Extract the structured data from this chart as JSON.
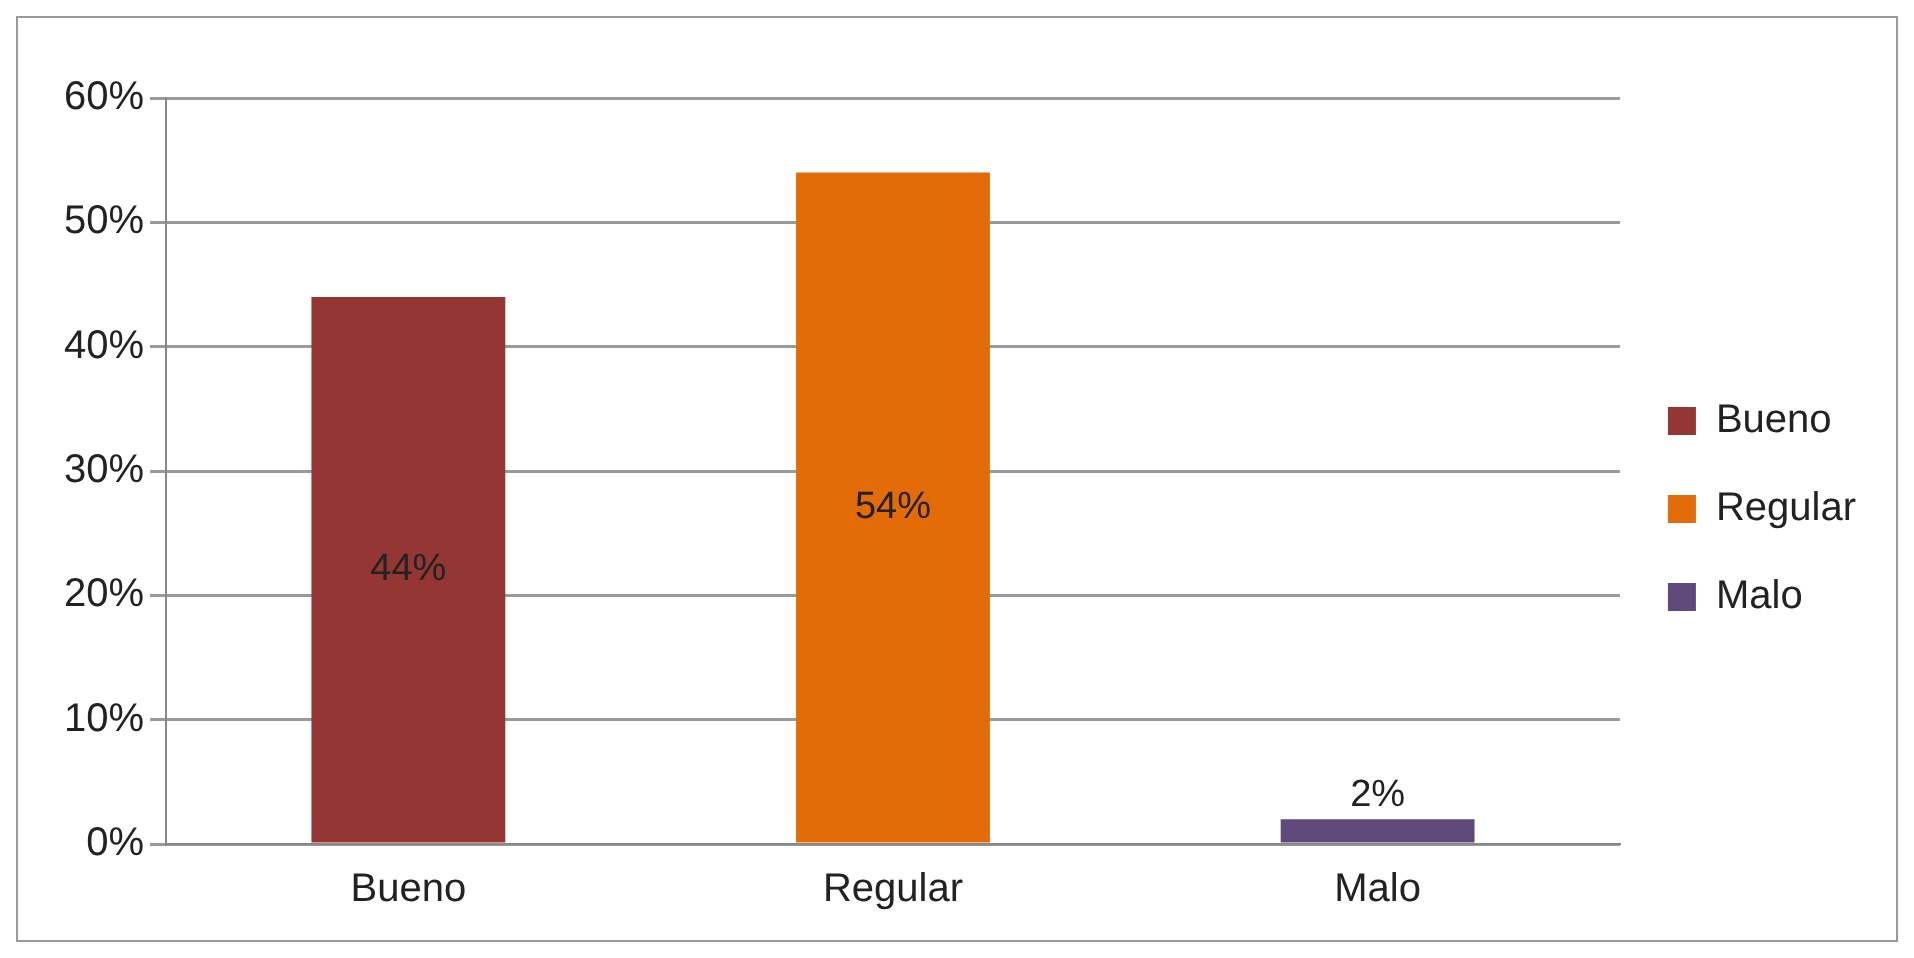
{
  "chart_data": {
    "type": "bar",
    "categories": [
      "Bueno",
      "Regular",
      "Malo"
    ],
    "series": [
      {
        "name": "Bueno",
        "color": "#943634",
        "values": [
          44,
          null,
          null
        ],
        "value_labels": [
          "44%",
          null,
          null
        ]
      },
      {
        "name": "Regular",
        "color": "#e36c09",
        "values": [
          null,
          54,
          null
        ],
        "value_labels": [
          null,
          "54%",
          null
        ]
      },
      {
        "name": "Malo",
        "color": "#604a7b",
        "values": [
          null,
          null,
          2
        ],
        "value_labels": [
          null,
          null,
          "2%"
        ]
      }
    ],
    "ylim": [
      0,
      60
    ],
    "yticks": [
      {
        "value": 0,
        "label": "0%"
      },
      {
        "value": 10,
        "label": "10%"
      },
      {
        "value": 20,
        "label": "20%"
      },
      {
        "value": 30,
        "label": "30%"
      },
      {
        "value": 40,
        "label": "40%"
      },
      {
        "value": 50,
        "label": "50%"
      },
      {
        "value": 60,
        "label": "60%"
      }
    ],
    "grid": "y",
    "legend": "right"
  }
}
